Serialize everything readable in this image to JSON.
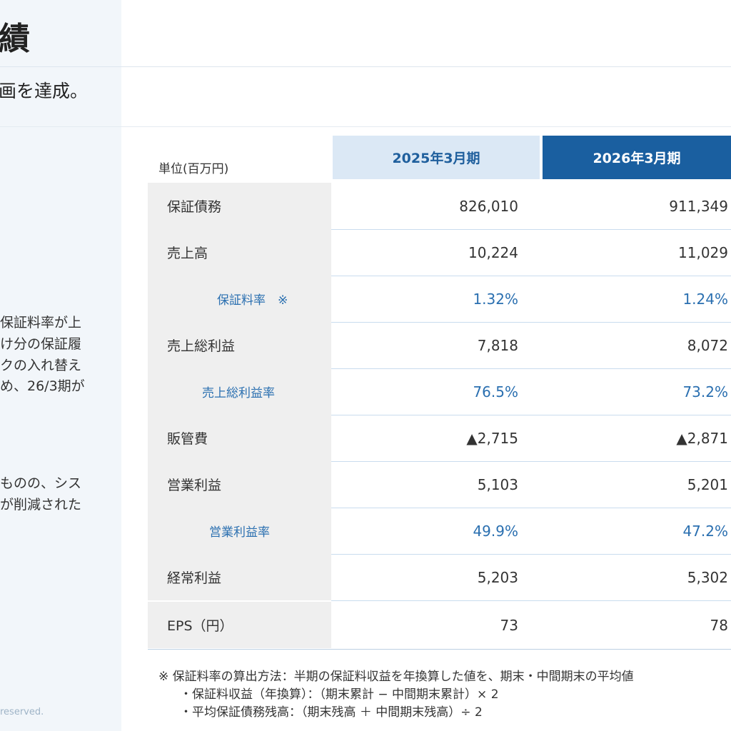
{
  "header": {
    "title": "績",
    "subtitle": "画を達成。"
  },
  "left_text": {
    "para1": [
      "保証料率が上",
      "け分の保証履",
      "クの入れ替え",
      "め、26/3期が"
    ],
    "para2": [
      "ものの、シス",
      "が削減された"
    ],
    "copyright": "reserved."
  },
  "table": {
    "unit_label": "単位(百万円)",
    "columns": [
      "2025年3月期",
      "2026年3月期"
    ],
    "rows": [
      {
        "label": "保証債務",
        "v2025": "826,010",
        "v2026": "911,349"
      },
      {
        "label": "売上高",
        "v2025": "10,224",
        "v2026": "11,029"
      },
      {
        "label": "保証料率　※",
        "v2025": "1.32%",
        "v2026": "1.24%"
      },
      {
        "label": "売上総利益",
        "v2025": "7,818",
        "v2026": "8,072"
      },
      {
        "label": "売上総利益率",
        "v2025": "76.5%",
        "v2026": "73.2%"
      },
      {
        "label": "販管費",
        "v2025": "▲2,715",
        "v2026": "▲2,871"
      },
      {
        "label": "営業利益",
        "v2025": "5,103",
        "v2026": "5,201"
      },
      {
        "label": "営業利益率",
        "v2025": "49.9%",
        "v2026": "47.2%"
      },
      {
        "label": "経常利益",
        "v2025": "5,203",
        "v2026": "5,302"
      },
      {
        "label": "EPS（円）",
        "v2025": "73",
        "v2026": "78"
      }
    ]
  },
  "footnotes": [
    "※ 保証料率の算出方法：半期の保証料収益を年換算した値を、期末・中間期末の平均値",
    "・保証料収益（年換算）：（期末累計 − 中間期末累計）× 2",
    "・平均保証債務残高：（期末残高 ＋ 中間期末残高）÷ 2"
  ]
}
